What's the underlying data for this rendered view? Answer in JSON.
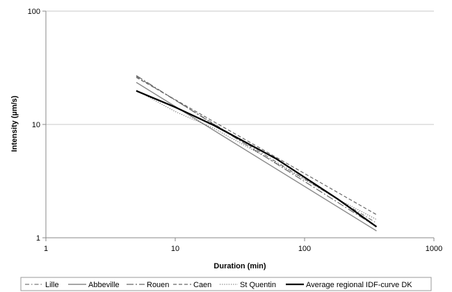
{
  "chart_data": {
    "type": "line",
    "title": "",
    "xlabel": "Duration (min)",
    "ylabel": "Intensity (µm/s)",
    "x_scale": "log",
    "y_scale": "log",
    "xlim": [
      1,
      1000
    ],
    "ylim": [
      1,
      100
    ],
    "x_ticks": [
      "1",
      "10",
      "100",
      "1000"
    ],
    "y_ticks": [
      "1",
      "10",
      "100"
    ],
    "grid": "horizontal",
    "legend_position": "bottom",
    "series": [
      {
        "name": "Lille",
        "color": "#777777",
        "dash": "dash-dot",
        "x": [
          5,
          360
        ],
        "y": [
          26.5,
          1.35
        ]
      },
      {
        "name": "Abbeville",
        "color": "#888888",
        "dash": "solid",
        "x": [
          5,
          360
        ],
        "y": [
          23.5,
          1.15
        ]
      },
      {
        "name": "Rouen",
        "color": "#666666",
        "dash": "long-dash-dot",
        "x": [
          5,
          360
        ],
        "y": [
          27.0,
          1.25
        ]
      },
      {
        "name": "Caen",
        "color": "#666666",
        "dash": "dashed",
        "x": [
          5,
          360
        ],
        "y": [
          26.0,
          1.6
        ]
      },
      {
        "name": "St Quentin",
        "color": "#555555",
        "dash": "dotted",
        "x": [
          5,
          10,
          20,
          60,
          180,
          360
        ],
        "y": [
          20.0,
          13.0,
          9.2,
          4.6,
          2.2,
          1.45
        ]
      },
      {
        "name": "Average regional IDF-curve DK",
        "color": "#000000",
        "dash": "solid-bold",
        "x": [
          5,
          10,
          20,
          60,
          180,
          360
        ],
        "y": [
          19.8,
          14.2,
          9.8,
          5.0,
          2.2,
          1.25
        ]
      }
    ]
  }
}
